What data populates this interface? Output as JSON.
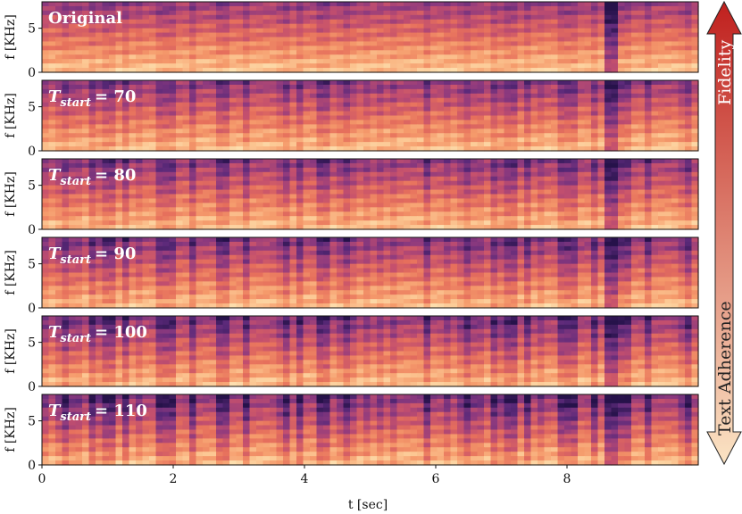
{
  "figure": {
    "xlabel": "t [sec]",
    "ylabel": "f [KHz]",
    "x_ticks": [
      "0",
      "2",
      "4",
      "6",
      "8"
    ],
    "y_ticks": [
      "0",
      "5"
    ],
    "panels": [
      {
        "title": "Original",
        "title_base": "",
        "title_sub": "",
        "title_value": "",
        "darkness": 0.2
      },
      {
        "title": "",
        "title_base": "T",
        "title_sub": "start",
        "title_value": "= 70",
        "darkness": 0.38
      },
      {
        "title": "",
        "title_base": "T",
        "title_sub": "start",
        "title_value": "= 80",
        "darkness": 0.42
      },
      {
        "title": "",
        "title_base": "T",
        "title_sub": "start",
        "title_value": "= 90",
        "darkness": 0.48
      },
      {
        "title": "",
        "title_base": "T",
        "title_sub": "start",
        "title_value": "= 100",
        "darkness": 0.55
      },
      {
        "title": "",
        "title_base": "T",
        "title_sub": "start",
        "title_value": "= 110",
        "darkness": 0.66
      }
    ],
    "arrow": {
      "top_label": "Fidelity",
      "bottom_label": "Text Adherence",
      "top_color": "#c0201e",
      "bottom_color": "#fbe4c4"
    },
    "colormap": [
      "#26124a",
      "#5c2a7a",
      "#8e3a7e",
      "#c34f6e",
      "#e66f5c",
      "#f59a6b",
      "#fcc894",
      "#fdebbd"
    ]
  }
}
